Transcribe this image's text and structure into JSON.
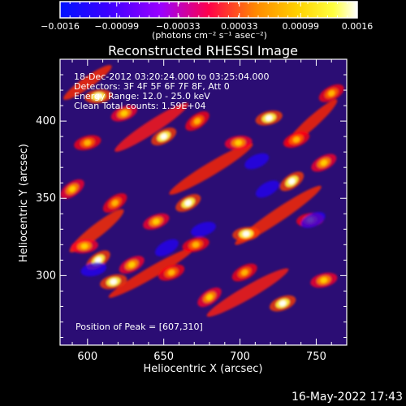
{
  "chart_data": {
    "type": "heatmap",
    "title": "Reconstructed RHESSI Image",
    "xlabel": "Heliocentric X (arcsec)",
    "ylabel": "Heliocentric Y (arcsec)",
    "xlim": [
      582,
      770
    ],
    "ylim": [
      255,
      440
    ],
    "x_ticks": [
      600,
      650,
      700,
      750
    ],
    "y_ticks": [
      300,
      350,
      400
    ],
    "x_tick_labels": [
      "600",
      "650",
      "700",
      "750"
    ],
    "y_tick_labels": [
      "300",
      "350",
      "400"
    ],
    "colorbar": {
      "min": -0.0016,
      "max": 0.0016,
      "tick_labels": [
        "−0.0016",
        "−0.00099",
        "−0.00033",
        "0.00033",
        "0.00099",
        "0.0016"
      ],
      "units": "(photons cm⁻² s⁻¹ asec⁻²)",
      "colors": [
        "#0012ff",
        "#3b00ff",
        "#9b00ff",
        "#ff004a",
        "#ff8a00",
        "#ffd200",
        "#ffff40",
        "#ffffff"
      ]
    },
    "peaks": [
      {
        "x": 607,
        "y": 310
      },
      {
        "x": 629,
        "y": 307
      },
      {
        "x": 655,
        "y": 302
      },
      {
        "x": 617,
        "y": 296
      },
      {
        "x": 598,
        "y": 319
      },
      {
        "x": 618,
        "y": 347
      },
      {
        "x": 666,
        "y": 347
      },
      {
        "x": 645,
        "y": 335
      },
      {
        "x": 671,
        "y": 320
      },
      {
        "x": 704,
        "y": 327
      },
      {
        "x": 680,
        "y": 286
      },
      {
        "x": 703,
        "y": 302
      },
      {
        "x": 728,
        "y": 282
      },
      {
        "x": 755,
        "y": 297
      },
      {
        "x": 746,
        "y": 336
      },
      {
        "x": 734,
        "y": 361
      },
      {
        "x": 755,
        "y": 373
      },
      {
        "x": 737,
        "y": 388
      },
      {
        "x": 719,
        "y": 402
      },
      {
        "x": 699,
        "y": 386
      },
      {
        "x": 672,
        "y": 400
      },
      {
        "x": 650,
        "y": 390
      },
      {
        "x": 624,
        "y": 405
      },
      {
        "x": 600,
        "y": 386
      },
      {
        "x": 607,
        "y": 416
      },
      {
        "x": 590,
        "y": 356
      },
      {
        "x": 760,
        "y": 418
      }
    ],
    "troughs": [
      {
        "x": 718,
        "y": 356
      },
      {
        "x": 748,
        "y": 336
      },
      {
        "x": 676,
        "y": 330
      },
      {
        "x": 604,
        "y": 304
      },
      {
        "x": 652,
        "y": 318
      },
      {
        "x": 711,
        "y": 374
      }
    ]
  },
  "header": {
    "date_range": "18-Dec-2012 03:20:24.000 to 03:25:04.000",
    "detectors": "Detectors: 3F 4F 5F 6F 7F 8F, Att 0",
    "energy_range": "Energy Range: 12.0 - 25.0 keV",
    "method_counts": "Clean    Total counts: 1.59E+04",
    "peak_position": "Position of Peak = [607,310]"
  },
  "footer": {
    "timestamp": "16-May-2022 17:43"
  }
}
